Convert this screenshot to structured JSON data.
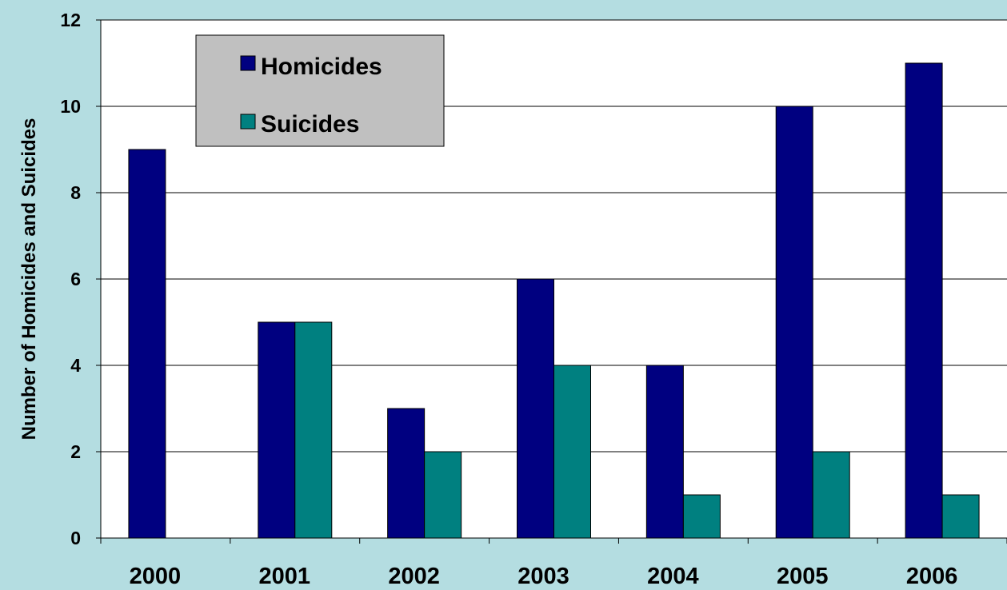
{
  "colors": {
    "background": "#b4dde1",
    "plot_area": "#ffffff",
    "homicides": "#000080",
    "suicides": "#008080",
    "legend_box": "#c0c0c0",
    "gridline": "#000000"
  },
  "chart_data": {
    "type": "bar",
    "title": "",
    "xlabel": "",
    "ylabel": "Number of Homicides and Suicides",
    "categories": [
      "2000",
      "2001",
      "2002",
      "2003",
      "2004",
      "2005",
      "2006"
    ],
    "series": [
      {
        "name": "Homicides",
        "values": [
          9,
          5,
          3,
          6,
          4,
          10,
          11
        ],
        "color": "#000080"
      },
      {
        "name": "Suicides",
        "values": [
          0,
          5,
          2,
          4,
          1,
          2,
          1
        ],
        "color": "#008080"
      }
    ],
    "ylim": [
      0,
      12
    ],
    "yticks": [
      "0",
      "2",
      "4",
      "6",
      "8",
      "10",
      "12"
    ],
    "grid": true,
    "legend_placement": "top-left"
  }
}
